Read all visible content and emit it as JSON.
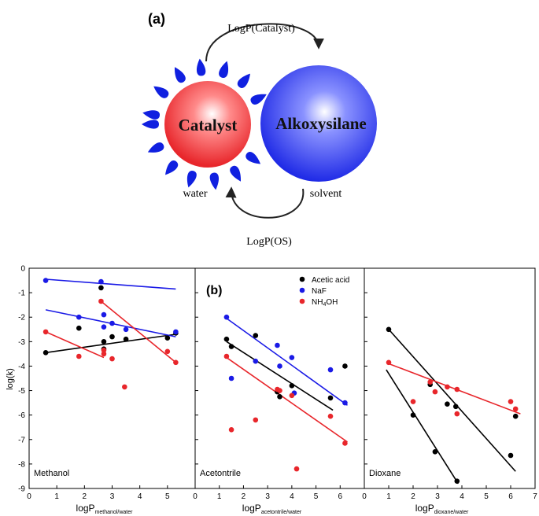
{
  "panel_a": {
    "label": "(a)",
    "catalyst": "Catalyst",
    "alkoxysilane": "Alkoxysilane",
    "logp_catalyst": "LogP(Catalyst)",
    "logp_os": "LogP(OS)",
    "water": "water",
    "solvent": "solvent",
    "colors": {
      "catalyst": "#e8262b",
      "alkoxysilane": "#1f2ae6",
      "droplet": "#1020e0"
    }
  },
  "panel_b": {
    "label": "(b)",
    "ylabel": "log(k)",
    "legend": [
      {
        "name": "Acetic acid",
        "color": "#000000"
      },
      {
        "name": "NaF",
        "color": "#1a1ae6"
      },
      {
        "name": "NH4OH",
        "color": "#e8262b",
        "display": "NH",
        "sub": "4",
        "tail": "OH"
      }
    ]
  },
  "chart_data": [
    {
      "type": "scatter",
      "title": "Methanol",
      "xlabel": "logP",
      "xlabel_sub": "methanol/water",
      "xlim": [
        0,
        6
      ],
      "ylim": [
        -9,
        0
      ],
      "xticks": [
        "0",
        "1",
        "2",
        "3",
        "4",
        "5",
        "6"
      ],
      "yticks": [
        "0",
        "-1",
        "-2",
        "-3",
        "-4",
        "-5",
        "-6",
        "-7",
        "-8",
        "-9"
      ],
      "series": [
        {
          "name": "Acetic acid",
          "color": "#000000",
          "points": [
            [
              0.6,
              -3.45
            ],
            [
              1.8,
              -2.45
            ],
            [
              2.6,
              -0.8
            ],
            [
              2.7,
              -3.0
            ],
            [
              2.7,
              -3.3
            ],
            [
              3.0,
              -2.8
            ],
            [
              3.5,
              -2.9
            ],
            [
              5.0,
              -2.85
            ],
            [
              5.3,
              -2.65
            ]
          ],
          "fit": [
            [
              0.6,
              -3.45
            ],
            [
              5.3,
              -2.7
            ]
          ]
        },
        {
          "name": "NaF",
          "color": "#1a1ae6",
          "points": [
            [
              0.6,
              -0.5
            ],
            [
              1.8,
              -2.0
            ],
            [
              2.6,
              -0.55
            ],
            [
              2.7,
              -1.9
            ],
            [
              2.7,
              -2.4
            ],
            [
              3.0,
              -2.25
            ],
            [
              3.5,
              -2.5
            ],
            [
              5.3,
              -2.6
            ]
          ],
          "fit_lines": [
            [
              [
                0.6,
                -0.45
              ],
              [
                5.3,
                -0.85
              ]
            ],
            [
              [
                0.6,
                -1.7
              ],
              [
                5.3,
                -2.8
              ]
            ]
          ]
        },
        {
          "name": "NH4OH",
          "color": "#e8262b",
          "points": [
            [
              0.6,
              -2.6
            ],
            [
              1.8,
              -3.6
            ],
            [
              2.6,
              -1.35
            ],
            [
              2.7,
              -3.35
            ],
            [
              2.7,
              -3.5
            ],
            [
              3.0,
              -3.7
            ],
            [
              3.45,
              -4.85
            ],
            [
              5.0,
              -3.4
            ],
            [
              5.3,
              -3.85
            ]
          ],
          "fit_lines": [
            [
              [
                0.6,
                -2.6
              ],
              [
                2.7,
                -3.65
              ]
            ],
            [
              [
                2.6,
                -1.35
              ],
              [
                5.3,
                -3.85
              ]
            ]
          ]
        }
      ]
    },
    {
      "type": "scatter",
      "title": "Acetontrile",
      "xlabel": "logP",
      "xlabel_sub": "acetontrile/water",
      "xlim": [
        0,
        7
      ],
      "ylim": [
        -9,
        0
      ],
      "xticks": [
        "0",
        "1",
        "2",
        "3",
        "4",
        "5",
        "6",
        "7"
      ],
      "series": [
        {
          "name": "Acetic acid",
          "color": "#000000",
          "points": [
            [
              1.3,
              -2.9
            ],
            [
              1.5,
              -3.2
            ],
            [
              2.5,
              -2.75
            ],
            [
              3.4,
              -5.05
            ],
            [
              3.5,
              -5.25
            ],
            [
              4.0,
              -4.8
            ],
            [
              5.6,
              -5.3
            ],
            [
              6.2,
              -4.0
            ]
          ],
          "fit": [
            [
              1.3,
              -3.0
            ],
            [
              5.7,
              -5.8
            ]
          ]
        },
        {
          "name": "NaF",
          "color": "#1a1ae6",
          "points": [
            [
              1.3,
              -2.0
            ],
            [
              1.5,
              -4.5
            ],
            [
              2.5,
              -3.8
            ],
            [
              3.4,
              -3.15
            ],
            [
              3.5,
              -4.0
            ],
            [
              4.0,
              -3.65
            ],
            [
              4.1,
              -5.1
            ],
            [
              5.6,
              -4.15
            ],
            [
              6.2,
              -5.5
            ]
          ],
          "fit": [
            [
              1.3,
              -2.05
            ],
            [
              6.3,
              -5.6
            ]
          ]
        },
        {
          "name": "NH4OH",
          "color": "#e8262b",
          "points": [
            [
              1.3,
              -3.6
            ],
            [
              1.5,
              -6.6
            ],
            [
              2.5,
              -6.2
            ],
            [
              3.4,
              -4.95
            ],
            [
              3.5,
              -5.0
            ],
            [
              4.0,
              -5.2
            ],
            [
              4.2,
              -8.2
            ],
            [
              5.6,
              -6.05
            ],
            [
              6.2,
              -7.15
            ]
          ],
          "fit": [
            [
              1.3,
              -3.65
            ],
            [
              6.3,
              -7.1
            ]
          ]
        }
      ]
    },
    {
      "type": "scatter",
      "title": "Dioxane",
      "xlabel": "logP",
      "xlabel_sub": "dioxane/water",
      "xlim": [
        0,
        7
      ],
      "ylim": [
        -9,
        0
      ],
      "xticks": [
        "0",
        "1",
        "2",
        "3",
        "4",
        "5",
        "6",
        "7"
      ],
      "series": [
        {
          "name": "Acetic acid",
          "color": "#000000",
          "points": [
            [
              1.0,
              -2.5
            ],
            [
              2.0,
              -6.0
            ],
            [
              2.7,
              -4.75
            ],
            [
              2.9,
              -7.5
            ],
            [
              3.4,
              -5.55
            ],
            [
              3.75,
              -5.65
            ],
            [
              3.8,
              -8.7
            ],
            [
              6.0,
              -7.65
            ],
            [
              6.2,
              -6.05
            ]
          ],
          "fit_lines": [
            [
              [
                1.0,
                -2.5
              ],
              [
                6.2,
                -8.3
              ]
            ],
            [
              [
                0.9,
                -4.15
              ],
              [
                3.85,
                -8.8
              ]
            ]
          ]
        },
        {
          "name": "NH4OH",
          "color": "#e8262b",
          "points": [
            [
              1.0,
              -3.85
            ],
            [
              2.0,
              -5.45
            ],
            [
              2.7,
              -4.65
            ],
            [
              2.9,
              -5.05
            ],
            [
              3.4,
              -4.85
            ],
            [
              3.8,
              -4.95
            ],
            [
              3.8,
              -5.95
            ],
            [
              6.0,
              -5.45
            ],
            [
              6.2,
              -5.75
            ]
          ],
          "fit": [
            [
              1.0,
              -3.9
            ],
            [
              6.4,
              -5.95
            ]
          ]
        }
      ]
    }
  ]
}
